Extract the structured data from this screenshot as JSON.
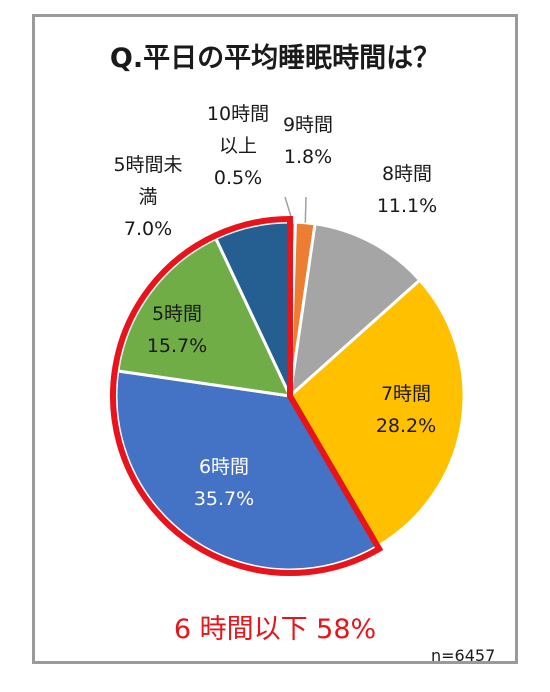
{
  "title": "Q.平日の平均睡眠時間は？",
  "summary": "6 時間以下 58%",
  "sample": "n=6457",
  "chart_data": {
    "type": "pie",
    "title": "Q.平日の平均睡眠時間は？",
    "slices": [
      {
        "label": "10時間以上",
        "label_lines": [
          "10時間",
          "以上"
        ],
        "value": 0.5,
        "value_text": "0.5%",
        "color": "#7f7f7f"
      },
      {
        "label": "9時間",
        "label_lines": [
          "9時間"
        ],
        "value": 1.8,
        "value_text": "1.8%",
        "color": "#ed7d31"
      },
      {
        "label": "8時間",
        "label_lines": [
          "8時間"
        ],
        "value": 11.1,
        "value_text": "11.1%",
        "color": "#a5a5a5"
      },
      {
        "label": "7時間",
        "label_lines": [
          "7時間"
        ],
        "value": 28.2,
        "value_text": "28.2%",
        "color": "#ffc000"
      },
      {
        "label": "6時間",
        "label_lines": [
          "6時間"
        ],
        "value": 35.7,
        "value_text": "35.7%",
        "color": "#4472c4"
      },
      {
        "label": "5時間",
        "label_lines": [
          "5時間"
        ],
        "value": 15.7,
        "value_text": "15.7%",
        "color": "#70ad47"
      },
      {
        "label": "5時間未満",
        "label_lines": [
          "5時間未",
          "満"
        ],
        "value": 7.0,
        "value_text": "7.0%",
        "color": "#255e91"
      }
    ],
    "highlight": {
      "label": "6 時間以下 58%",
      "color": "#e8141b"
    },
    "n": 6457
  }
}
